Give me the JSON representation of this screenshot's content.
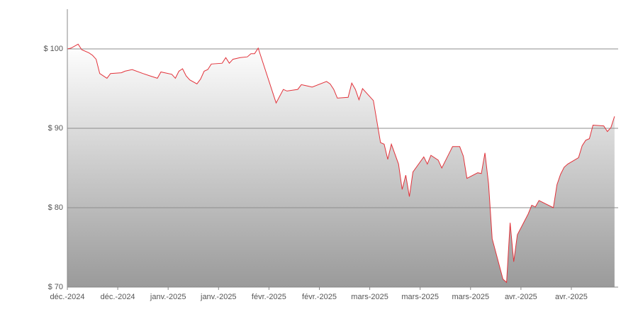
{
  "chart_data": {
    "type": "area",
    "x": [
      0,
      1,
      3,
      4,
      6,
      7,
      8,
      9,
      11,
      12,
      15,
      16,
      18,
      21,
      23,
      25,
      26,
      29,
      30,
      31,
      32,
      33,
      34,
      36,
      37,
      38,
      39,
      40,
      43,
      44,
      45,
      46,
      48,
      50,
      51,
      52,
      53,
      58,
      60,
      61,
      64,
      65,
      66,
      67,
      68,
      72,
      73,
      74,
      75,
      78,
      79,
      80,
      81,
      82,
      85,
      87,
      88,
      89,
      90,
      92,
      93,
      94,
      95,
      96,
      99,
      100,
      101,
      103,
      104,
      107,
      109,
      110,
      111,
      114,
      115,
      116,
      117,
      118,
      121,
      122,
      123,
      124,
      125,
      128,
      129,
      130,
      131,
      135,
      136,
      137,
      138,
      139,
      142,
      143,
      144,
      145,
      146,
      149,
      150,
      151,
      152
    ],
    "values": [
      100.0,
      100.1,
      100.6,
      99.9,
      99.5,
      99.2,
      98.7,
      96.9,
      96.3,
      96.9,
      97.0,
      97.2,
      97.4,
      96.9,
      96.6,
      96.3,
      97.1,
      96.8,
      96.3,
      97.2,
      97.5,
      96.6,
      96.1,
      95.6,
      96.2,
      97.2,
      97.4,
      98.1,
      98.2,
      98.9,
      98.2,
      98.7,
      98.9,
      99.0,
      99.4,
      99.4,
      100.1,
      93.2,
      94.9,
      94.7,
      94.9,
      95.5,
      95.4,
      95.3,
      95.2,
      95.9,
      95.6,
      94.9,
      93.8,
      93.9,
      95.7,
      94.9,
      93.6,
      95.0,
      93.5,
      88.2,
      88.0,
      86.1,
      88.0,
      85.5,
      82.3,
      84.1,
      81.4,
      84.5,
      86.4,
      85.5,
      86.6,
      86.0,
      85.0,
      87.7,
      87.7,
      86.5,
      83.7,
      84.4,
      84.3,
      86.9,
      83.0,
      76.1,
      71.0,
      70.6,
      78.1,
      73.2,
      76.6,
      79.2,
      80.3,
      80.1,
      80.9,
      80.0,
      82.9,
      84.2,
      85.1,
      85.5,
      86.3,
      87.8,
      88.5,
      88.7,
      90.4,
      90.3,
      89.6,
      90.1,
      91.5
    ],
    "color": "#e2323a",
    "xlim": [
      0,
      153
    ],
    "xticks": [
      {
        "value": 0,
        "label": "déc.-2024"
      },
      {
        "value": 14,
        "label": "déc.-2024"
      },
      {
        "value": 28,
        "label": "janv.-2025"
      },
      {
        "value": 42,
        "label": "janv.-2025"
      },
      {
        "value": 56,
        "label": "févr.-2025"
      },
      {
        "value": 70,
        "label": "févr.-2025"
      },
      {
        "value": 84,
        "label": "mars-2025"
      },
      {
        "value": 98,
        "label": "mars-2025"
      },
      {
        "value": 112,
        "label": "mars-2025"
      },
      {
        "value": 126,
        "label": "avr.-2025"
      },
      {
        "value": 140,
        "label": "avr.-2025"
      }
    ],
    "ylim": [
      70,
      105
    ],
    "yticks": [
      {
        "value": 70,
        "label": "$ 70"
      },
      {
        "value": 80,
        "label": "$ 80"
      },
      {
        "value": 90,
        "label": "$ 90"
      },
      {
        "value": 100,
        "label": "$ 100"
      }
    ],
    "grid": true
  }
}
